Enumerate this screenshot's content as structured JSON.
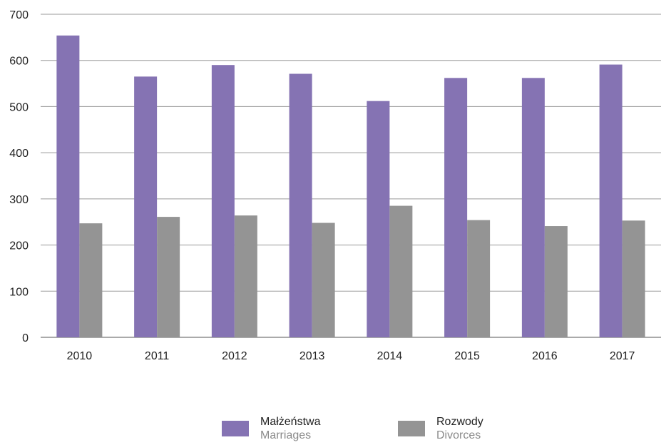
{
  "chart_data": {
    "type": "bar",
    "categories": [
      "2010",
      "2011",
      "2012",
      "2013",
      "2014",
      "2015",
      "2016",
      "2017"
    ],
    "series": [
      {
        "name": "Małżeństwa / Marriages",
        "color": "#8573b3",
        "values": [
          654,
          565,
          590,
          571,
          512,
          562,
          562,
          591
        ]
      },
      {
        "name": "Rozwody / Divorces",
        "color": "#949494",
        "values": [
          247,
          261,
          264,
          248,
          285,
          254,
          241,
          253
        ]
      }
    ],
    "ylim": [
      0,
      700
    ],
    "yticks": [
      "0",
      "100",
      "200",
      "300",
      "400",
      "500",
      "600",
      "700"
    ],
    "grid": true,
    "legend_position": "bottom"
  },
  "legend": [
    {
      "label": "Małżeństwa",
      "sublabel": "Marriages",
      "color": "#8573b3"
    },
    {
      "label": "Rozwody",
      "sublabel": "Divorces",
      "color": "#949494"
    }
  ]
}
